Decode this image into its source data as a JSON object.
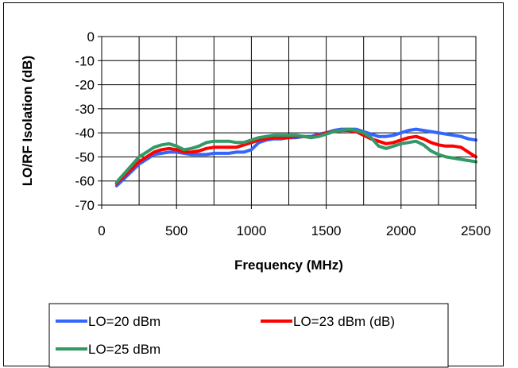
{
  "chart_data": {
    "type": "line",
    "title": "",
    "xlabel": "Frequency (MHz)",
    "ylabel": "LO/RF Isolation (dB)",
    "xlim": [
      0,
      2500
    ],
    "ylim": [
      -70,
      0
    ],
    "xticks": [
      0,
      500,
      1000,
      1500,
      2000,
      2500
    ],
    "yticks": [
      0,
      -10,
      -20,
      -30,
      -40,
      -50,
      -60,
      -70
    ],
    "grid": true,
    "legend_position": "bottom",
    "series": [
      {
        "name": "LO=20 dBm",
        "color": "#3366ff",
        "x": [
          100,
          150,
          200,
          250,
          300,
          350,
          400,
          450,
          500,
          550,
          600,
          650,
          700,
          750,
          800,
          850,
          900,
          950,
          1000,
          1050,
          1100,
          1150,
          1200,
          1250,
          1300,
          1350,
          1400,
          1450,
          1500,
          1550,
          1600,
          1650,
          1700,
          1750,
          1800,
          1850,
          1900,
          1950,
          2000,
          2050,
          2100,
          2150,
          2200,
          2250,
          2300,
          2350,
          2400,
          2450,
          2500
        ],
        "y": [
          -62,
          -59,
          -56,
          -53,
          -51,
          -49,
          -48.5,
          -48,
          -48,
          -48.5,
          -49,
          -49,
          -49,
          -48.5,
          -48.5,
          -48.5,
          -48,
          -48,
          -47,
          -44,
          -43,
          -42.5,
          -42.5,
          -42,
          -42,
          -41.5,
          -41.5,
          -40.5,
          -40,
          -39,
          -38.5,
          -38.5,
          -38.5,
          -39.5,
          -40.5,
          -41.5,
          -41.5,
          -41,
          -40,
          -39,
          -38.5,
          -39,
          -39.5,
          -40,
          -40.5,
          -41,
          -41.5,
          -42.5,
          -43
        ]
      },
      {
        "name": "LO=23 dBm (dB)",
        "color": "#ff0000",
        "x": [
          100,
          150,
          200,
          250,
          300,
          350,
          400,
          450,
          500,
          550,
          600,
          650,
          700,
          750,
          800,
          850,
          900,
          950,
          1000,
          1050,
          1100,
          1150,
          1200,
          1250,
          1300,
          1350,
          1400,
          1450,
          1500,
          1550,
          1600,
          1650,
          1700,
          1750,
          1800,
          1850,
          1900,
          1950,
          2000,
          2050,
          2100,
          2150,
          2200,
          2250,
          2300,
          2350,
          2400,
          2450,
          2500
        ],
        "y": [
          -61,
          -58,
          -55,
          -52,
          -50,
          -48,
          -47,
          -46.5,
          -47,
          -48,
          -48,
          -47.5,
          -46.5,
          -46,
          -46,
          -46,
          -46,
          -45,
          -44,
          -43,
          -42.5,
          -42,
          -42,
          -42,
          -41.5,
          -41.5,
          -42,
          -41,
          -40,
          -39.5,
          -39,
          -39,
          -39.5,
          -41,
          -42.5,
          -43.5,
          -44.5,
          -44,
          -43,
          -42,
          -41.5,
          -42.5,
          -44,
          -45,
          -45.5,
          -45.5,
          -46,
          -48,
          -50
        ]
      },
      {
        "name": "LO=25 dBm",
        "color": "#339966",
        "x": [
          100,
          150,
          200,
          250,
          300,
          350,
          400,
          450,
          500,
          550,
          600,
          650,
          700,
          750,
          800,
          850,
          900,
          950,
          1000,
          1050,
          1100,
          1150,
          1200,
          1250,
          1300,
          1350,
          1400,
          1450,
          1500,
          1550,
          1600,
          1650,
          1700,
          1750,
          1800,
          1850,
          1900,
          1950,
          2000,
          2050,
          2100,
          2150,
          2200,
          2250,
          2300,
          2350,
          2400,
          2450,
          2500
        ],
        "y": [
          -60.5,
          -57,
          -53.5,
          -50,
          -48,
          -46,
          -45,
          -44.5,
          -45.5,
          -47,
          -46.5,
          -45.5,
          -44,
          -43.5,
          -43.5,
          -43.5,
          -44,
          -44,
          -43,
          -42,
          -41.5,
          -41,
          -41,
          -41,
          -41,
          -41.5,
          -42,
          -41.5,
          -40.5,
          -39.5,
          -39,
          -38.5,
          -39,
          -40,
          -42,
          -45.5,
          -46.5,
          -45.5,
          -44.5,
          -44,
          -43.5,
          -45,
          -47.5,
          -49,
          -50,
          -50.5,
          -51,
          -51.5,
          -52
        ]
      }
    ]
  }
}
